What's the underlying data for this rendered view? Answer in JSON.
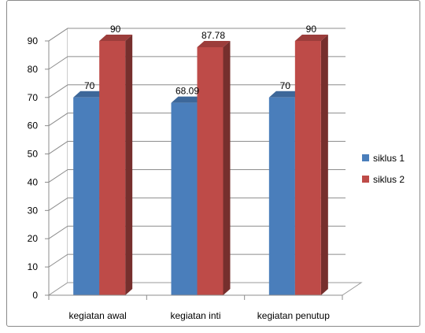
{
  "chart_data": {
    "type": "bar",
    "style": "3d-clustered-column",
    "categories": [
      "kegiatan awal",
      "kegiatan inti",
      "kegiatan penutup"
    ],
    "series": [
      {
        "name": "siklus 1",
        "values": [
          70,
          68.09,
          70
        ],
        "data_labels": [
          "70",
          "68.09",
          "70"
        ],
        "color": "#4a7ebb"
      },
      {
        "name": "siklus 2",
        "values": [
          90,
          87.78,
          90
        ],
        "data_labels": [
          "90",
          "87.78",
          "90"
        ],
        "color": "#be4b48"
      }
    ],
    "ylim": [
      0,
      90
    ],
    "yticks": [
      "0",
      "10",
      "20",
      "30",
      "40",
      "50",
      "60",
      "70",
      "80",
      "90"
    ],
    "grid": true,
    "legend_position": "right"
  }
}
